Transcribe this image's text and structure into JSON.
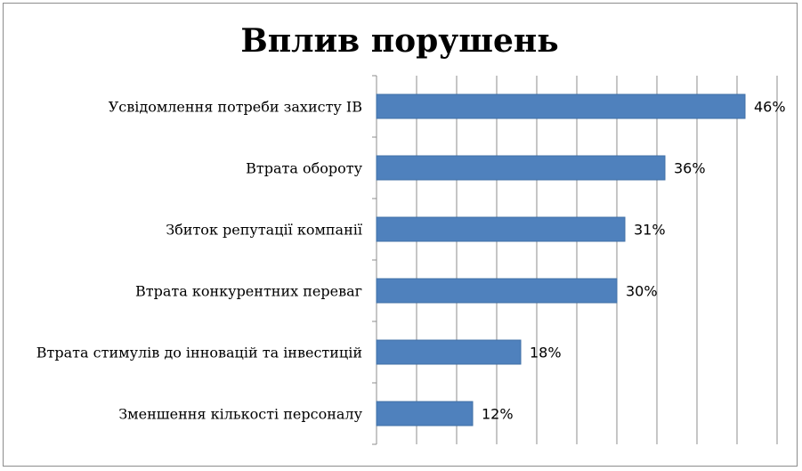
{
  "chart_data": {
    "type": "bar",
    "orientation": "horizontal",
    "title": "Вплив порушень",
    "categories": [
      "Усвідомлення потреби захисту ІВ",
      "Втрата обороту",
      "Збиток репутації компанії",
      "Втрата конкурентних переваг",
      "Втрата стимулів до інновацій та інвестицій",
      "Зменшення кількості персоналу"
    ],
    "values": [
      46,
      36,
      31,
      30,
      18,
      12
    ],
    "value_labels": [
      "46%",
      "36%",
      "31%",
      "30%",
      "18%",
      "12%"
    ],
    "xlim": [
      0,
      50
    ],
    "x_gridlines": true,
    "bar_color": "#4f81bd",
    "legend": "none"
  }
}
